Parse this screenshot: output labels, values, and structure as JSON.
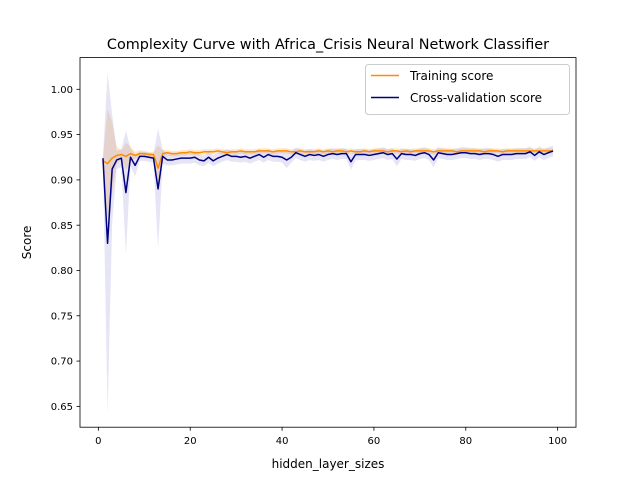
{
  "chart_data": {
    "type": "line",
    "title": "Complexity Curve with Africa_Crisis Neural Network Classifier",
    "xlabel": "hidden_layer_sizes",
    "ylabel": "Score",
    "xlim": [
      -4,
      104
    ],
    "ylim": [
      0.627,
      1.035
    ],
    "xticks": [
      0,
      20,
      40,
      60,
      80,
      100
    ],
    "yticks": [
      0.65,
      0.7,
      0.75,
      0.8,
      0.85,
      0.9,
      0.95,
      1.0
    ],
    "xtick_labels": [
      "0",
      "20",
      "40",
      "60",
      "80",
      "100"
    ],
    "ytick_labels": [
      "0.65",
      "0.70",
      "0.75",
      "0.80",
      "0.85",
      "0.90",
      "0.95",
      "1.00"
    ],
    "grid": false,
    "legend_position": "top-right",
    "x": [
      1,
      2,
      3,
      4,
      5,
      6,
      7,
      8,
      9,
      10,
      11,
      12,
      13,
      14,
      15,
      16,
      17,
      18,
      19,
      20,
      21,
      22,
      23,
      24,
      25,
      26,
      27,
      28,
      29,
      30,
      31,
      32,
      33,
      34,
      35,
      36,
      37,
      38,
      39,
      40,
      41,
      42,
      43,
      44,
      45,
      46,
      47,
      48,
      49,
      50,
      51,
      52,
      53,
      54,
      55,
      56,
      57,
      58,
      59,
      60,
      61,
      62,
      63,
      64,
      65,
      66,
      67,
      68,
      69,
      70,
      71,
      72,
      73,
      74,
      75,
      76,
      77,
      78,
      79,
      80,
      81,
      82,
      83,
      84,
      85,
      86,
      87,
      88,
      89,
      90,
      91,
      92,
      93,
      94,
      95,
      96,
      97,
      98,
      99
    ],
    "series": [
      {
        "name": "Training score",
        "color": "#ff8c00",
        "band_color": "#ff8c00",
        "values": [
          0.921,
          0.918,
          0.924,
          0.927,
          0.928,
          0.926,
          0.929,
          0.927,
          0.929,
          0.929,
          0.928,
          0.928,
          0.913,
          0.929,
          0.93,
          0.929,
          0.929,
          0.93,
          0.93,
          0.931,
          0.93,
          0.93,
          0.931,
          0.931,
          0.931,
          0.932,
          0.931,
          0.93,
          0.931,
          0.931,
          0.932,
          0.931,
          0.931,
          0.931,
          0.932,
          0.932,
          0.932,
          0.931,
          0.932,
          0.932,
          0.932,
          0.931,
          0.931,
          0.932,
          0.931,
          0.931,
          0.931,
          0.932,
          0.931,
          0.932,
          0.931,
          0.932,
          0.932,
          0.931,
          0.932,
          0.931,
          0.931,
          0.932,
          0.931,
          0.932,
          0.932,
          0.932,
          0.931,
          0.932,
          0.932,
          0.931,
          0.932,
          0.931,
          0.932,
          0.932,
          0.932,
          0.932,
          0.931,
          0.932,
          0.932,
          0.932,
          0.932,
          0.931,
          0.932,
          0.932,
          0.932,
          0.932,
          0.932,
          0.931,
          0.932,
          0.932,
          0.932,
          0.931,
          0.932,
          0.932,
          0.932,
          0.932,
          0.932,
          0.932,
          0.932,
          0.932,
          0.932,
          0.932,
          0.932
        ],
        "band": [
          0.003,
          0.06,
          0.04,
          0.01,
          0.005,
          0.015,
          0.008,
          0.004,
          0.004,
          0.003,
          0.003,
          0.003,
          0.025,
          0.004,
          0.003,
          0.003,
          0.003,
          0.003,
          0.003,
          0.003,
          0.003,
          0.003,
          0.003,
          0.003,
          0.003,
          0.003,
          0.003,
          0.003,
          0.003,
          0.003,
          0.003,
          0.003,
          0.003,
          0.003,
          0.003,
          0.003,
          0.003,
          0.003,
          0.003,
          0.003,
          0.003,
          0.003,
          0.003,
          0.003,
          0.003,
          0.003,
          0.003,
          0.003,
          0.003,
          0.003,
          0.003,
          0.003,
          0.003,
          0.003,
          0.003,
          0.003,
          0.003,
          0.003,
          0.003,
          0.003,
          0.003,
          0.003,
          0.003,
          0.003,
          0.003,
          0.003,
          0.003,
          0.003,
          0.003,
          0.003,
          0.003,
          0.003,
          0.003,
          0.003,
          0.003,
          0.003,
          0.003,
          0.003,
          0.003,
          0.003,
          0.003,
          0.003,
          0.003,
          0.003,
          0.003,
          0.003,
          0.003,
          0.003,
          0.003,
          0.003,
          0.003,
          0.003,
          0.003,
          0.003,
          0.003,
          0.003,
          0.003,
          0.003,
          0.003
        ]
      },
      {
        "name": "Cross-validation score",
        "color": "#000080",
        "band_color": "#7d7dd4",
        "values": [
          0.924,
          0.83,
          0.912,
          0.922,
          0.924,
          0.886,
          0.925,
          0.916,
          0.926,
          0.926,
          0.925,
          0.924,
          0.89,
          0.926,
          0.922,
          0.922,
          0.923,
          0.924,
          0.924,
          0.924,
          0.925,
          0.922,
          0.921,
          0.925,
          0.921,
          0.924,
          0.926,
          0.928,
          0.926,
          0.926,
          0.925,
          0.926,
          0.924,
          0.926,
          0.928,
          0.925,
          0.928,
          0.926,
          0.926,
          0.925,
          0.922,
          0.925,
          0.93,
          0.928,
          0.926,
          0.928,
          0.927,
          0.928,
          0.926,
          0.928,
          0.929,
          0.928,
          0.929,
          0.929,
          0.92,
          0.928,
          0.928,
          0.928,
          0.927,
          0.928,
          0.929,
          0.93,
          0.928,
          0.929,
          0.923,
          0.929,
          0.928,
          0.928,
          0.927,
          0.929,
          0.93,
          0.928,
          0.922,
          0.93,
          0.929,
          0.928,
          0.928,
          0.929,
          0.93,
          0.93,
          0.929,
          0.929,
          0.928,
          0.929,
          0.929,
          0.928,
          0.926,
          0.928,
          0.928,
          0.928,
          0.929,
          0.929,
          0.929,
          0.931,
          0.927,
          0.931,
          0.928,
          0.93,
          0.932
        ],
        "band": [
          0.003,
          0.188,
          0.06,
          0.01,
          0.01,
          0.068,
          0.01,
          0.012,
          0.005,
          0.005,
          0.005,
          0.005,
          0.066,
          0.008,
          0.006,
          0.006,
          0.006,
          0.006,
          0.006,
          0.006,
          0.006,
          0.006,
          0.006,
          0.006,
          0.006,
          0.006,
          0.006,
          0.006,
          0.006,
          0.006,
          0.006,
          0.006,
          0.006,
          0.006,
          0.006,
          0.006,
          0.006,
          0.006,
          0.006,
          0.006,
          0.009,
          0.006,
          0.006,
          0.006,
          0.006,
          0.006,
          0.006,
          0.006,
          0.006,
          0.006,
          0.006,
          0.006,
          0.006,
          0.006,
          0.009,
          0.006,
          0.006,
          0.006,
          0.006,
          0.006,
          0.006,
          0.006,
          0.006,
          0.006,
          0.008,
          0.006,
          0.006,
          0.006,
          0.006,
          0.006,
          0.006,
          0.006,
          0.008,
          0.006,
          0.006,
          0.006,
          0.006,
          0.006,
          0.006,
          0.006,
          0.006,
          0.006,
          0.006,
          0.006,
          0.006,
          0.006,
          0.006,
          0.006,
          0.006,
          0.006,
          0.006,
          0.006,
          0.006,
          0.006,
          0.006,
          0.006,
          0.006,
          0.006,
          0.006
        ]
      }
    ]
  }
}
